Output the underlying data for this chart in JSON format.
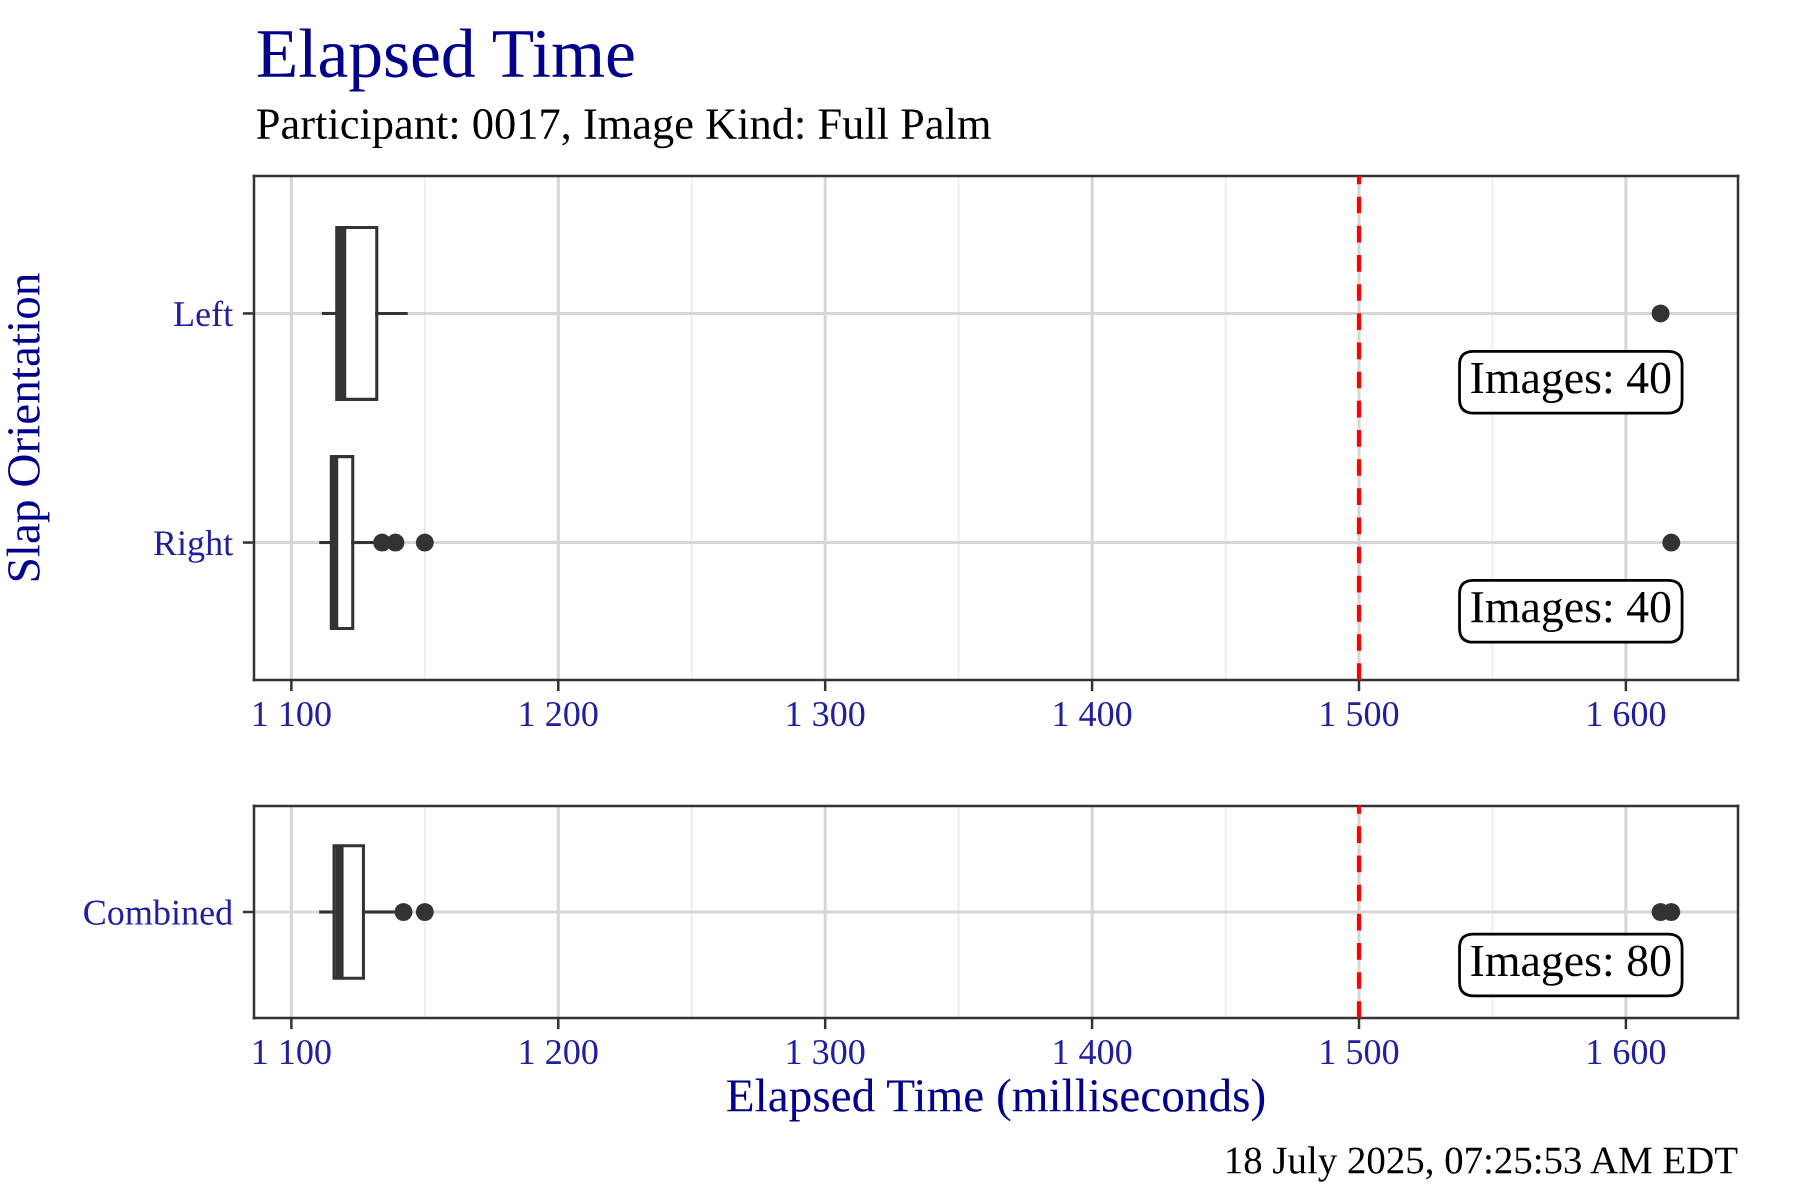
{
  "chart_data": [
    {
      "type": "box",
      "title": "Elapsed Time",
      "subtitle": "Participant: 0017, Image Kind: Full Palm",
      "ylabel": "Slap Orientation",
      "orientation": "horizontal",
      "categories": [
        "Left",
        "Right"
      ],
      "series": [
        {
          "color": "#333333",
          "boxes": [
            {
              "low": 1112,
              "q1": 1117,
              "median": 1119,
              "q3": 1132,
              "high": 1143,
              "outliers": [
                1613
              ]
            },
            {
              "low": 1111,
              "q1": 1115,
              "median": 1116,
              "q3": 1123,
              "high": 1131,
              "outliers": [
                1134,
                1139,
                1150,
                1617
              ]
            }
          ]
        }
      ],
      "xlim": [
        1086,
        1642
      ],
      "xticks": [
        {
          "value": 1100,
          "label": "1 100"
        },
        {
          "value": 1200,
          "label": "1 200"
        },
        {
          "value": 1300,
          "label": "1 300"
        },
        {
          "value": 1400,
          "label": "1 400"
        },
        {
          "value": 1500,
          "label": "1 500"
        },
        {
          "value": 1600,
          "label": "1 600"
        }
      ],
      "grid": true,
      "ref_lines": [
        {
          "axis": "x",
          "value": 1500,
          "color": "#ff0000",
          "line_style": "dashed"
        }
      ],
      "annotations": [
        "Images: 40",
        "Images: 40"
      ]
    },
    {
      "type": "box",
      "xlabel": "Elapsed Time (milliseconds)",
      "orientation": "horizontal",
      "categories": [
        "Combined"
      ],
      "series": [
        {
          "color": "#333333",
          "boxes": [
            {
              "low": 1111,
              "q1": 1116,
              "median": 1118,
              "q3": 1127,
              "high": 1139,
              "outliers": [
                1142,
                1150,
                1613,
                1617
              ]
            }
          ]
        }
      ],
      "xlim": [
        1086,
        1642
      ],
      "xticks": [
        {
          "value": 1100,
          "label": "1 100"
        },
        {
          "value": 1200,
          "label": "1 200"
        },
        {
          "value": 1300,
          "label": "1 300"
        },
        {
          "value": 1400,
          "label": "1 400"
        },
        {
          "value": 1500,
          "label": "1 500"
        },
        {
          "value": 1600,
          "label": "1 600"
        }
      ],
      "grid": true,
      "ref_lines": [
        {
          "axis": "x",
          "value": 1500,
          "color": "#ff0000",
          "line_style": "dashed"
        }
      ],
      "annotations": [
        "Images: 80",
        "18 July 2025, 07:25:53 AM EDT"
      ]
    }
  ]
}
